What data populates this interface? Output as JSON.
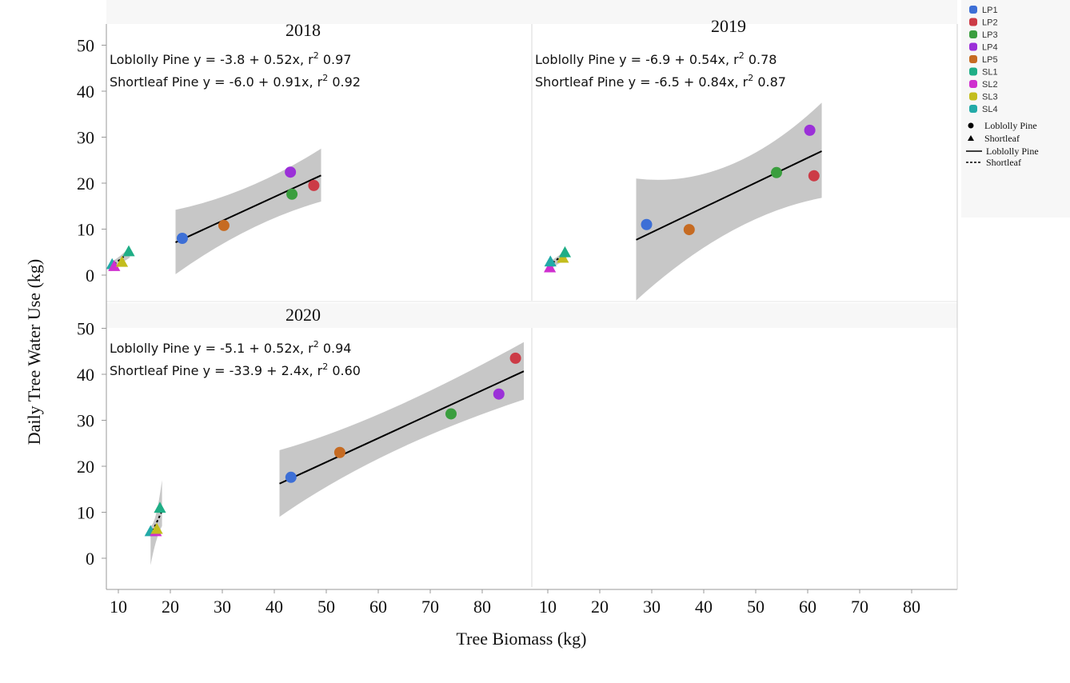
{
  "chart_data": {
    "type": "scatter",
    "xlabel": "Tree Biomass (kg)",
    "ylabel": "Daily Tree Water Use (kg)",
    "xticks": [
      10,
      20,
      30,
      40,
      50,
      60,
      70,
      80
    ],
    "yticks": [
      0,
      10,
      20,
      30,
      40,
      50
    ],
    "xlim": [
      8,
      90
    ],
    "ylim": [
      -7,
      50
    ],
    "legend_position": "right",
    "legend": {
      "series": [
        {
          "name": "LP1",
          "color": "#3d6fd6"
        },
        {
          "name": "LP2",
          "color": "#cc3b46"
        },
        {
          "name": "LP3",
          "color": "#3a9e3e"
        },
        {
          "name": "LP4",
          "color": "#9b30d8"
        },
        {
          "name": "LP5",
          "color": "#c66b22"
        },
        {
          "name": "SL1",
          "color": "#1fae86"
        },
        {
          "name": "SL2",
          "color": "#cf2fcf"
        },
        {
          "name": "SL3",
          "color": "#c3bd1d"
        },
        {
          "name": "SL4",
          "color": "#23aaa8"
        }
      ],
      "shape_entries": [
        {
          "label": "Loblolly Pine",
          "marker": "circle"
        },
        {
          "label": "Shortleaf",
          "marker": "triangle"
        }
      ],
      "line_entries": [
        {
          "label": "Loblolly Pine",
          "style": "solid"
        },
        {
          "label": "Shortleaf",
          "style": "dashed"
        }
      ]
    },
    "panels": [
      {
        "title": "2018",
        "equations": [
          {
            "pre": "Loblolly Pine y = -3.8 + 0.52x, r",
            "sup": "2",
            "post": " 0.97"
          },
          {
            "pre": "Shortleaf Pine y = -6.0 + 0.91x, r",
            "sup": "2",
            "post": " 0.92"
          }
        ],
        "loblolly": [
          {
            "s": "LP1",
            "x": 22.3,
            "y": 8.0
          },
          {
            "s": "LP5",
            "x": 30.3,
            "y": 10.8
          },
          {
            "s": "LP3",
            "x": 43.4,
            "y": 17.6
          },
          {
            "s": "LP4",
            "x": 43.1,
            "y": 22.4
          },
          {
            "s": "LP2",
            "x": 47.6,
            "y": 19.5
          }
        ],
        "shortleaf": [
          {
            "s": "SL4",
            "x": 8.8,
            "y": 2.3
          },
          {
            "s": "SL2",
            "x": 9.2,
            "y": 1.9
          },
          {
            "s": "SL3",
            "x": 10.7,
            "y": 2.8
          },
          {
            "s": "SL1",
            "x": 12.0,
            "y": 5.1
          }
        ],
        "lp_fit": {
          "x0": 21,
          "x1": 49,
          "b": -3.8,
          "m": 0.52,
          "band": [
            [
              21,
              0.2,
              14.2
            ],
            [
              35,
              11.5,
              17.5
            ],
            [
              49,
              16.0,
              27.5
            ]
          ]
        },
        "sl_fit": {
          "x0": 8.5,
          "x1": 12.2,
          "b": -6.0,
          "m": 0.91,
          "band": [
            [
              8.5,
              0.8,
              2.8
            ],
            [
              10.5,
              2.6,
              4.0
            ],
            [
              12.2,
              3.8,
              6.2
            ]
          ]
        }
      },
      {
        "title": "2019",
        "equations": [
          {
            "pre": "Loblolly Pine y = -6.9 + 0.54x, r",
            "sup": "2",
            "post": " 0.78"
          },
          {
            "pre": "Shortleaf Pine y = -6.5 + 0.84x, r",
            "sup": "2",
            "post": " 0.87"
          }
        ],
        "loblolly": [
          {
            "s": "LP1",
            "x": 29.0,
            "y": 11.0
          },
          {
            "s": "LP5",
            "x": 37.2,
            "y": 9.9
          },
          {
            "s": "LP3",
            "x": 54.0,
            "y": 22.3
          },
          {
            "s": "LP4",
            "x": 60.4,
            "y": 31.5
          },
          {
            "s": "LP2",
            "x": 61.2,
            "y": 21.6
          }
        ],
        "shortleaf": [
          {
            "s": "SL2",
            "x": 10.4,
            "y": 1.6
          },
          {
            "s": "SL4",
            "x": 10.5,
            "y": 2.9
          },
          {
            "s": "SL3",
            "x": 12.9,
            "y": 3.7
          },
          {
            "s": "SL1",
            "x": 13.3,
            "y": 4.9
          }
        ],
        "lp_fit": {
          "x0": 27,
          "x1": 62.7,
          "b": -6.9,
          "m": 0.54,
          "band": [
            [
              27,
              -5.5,
              21.0
            ],
            [
              45,
              13.0,
              18.5
            ],
            [
              62.7,
              16.8,
              37.5
            ]
          ]
        },
        "sl_fit": {
          "x0": 10.2,
          "x1": 13.6,
          "b": -6.5,
          "m": 0.84,
          "band": [
            [
              10.2,
              1.0,
              3.0
            ],
            [
              12,
              2.6,
              3.8
            ],
            [
              13.6,
              3.4,
              5.8
            ]
          ]
        }
      },
      {
        "title": "2020",
        "equations": [
          {
            "pre": "Loblolly Pine y = -5.1 + 0.52x, r",
            "sup": "2",
            "post": " 0.94"
          },
          {
            "pre": "Shortleaf Pine y = -33.9 + 2.4x, r",
            "sup": "2",
            "post": " 0.60"
          }
        ],
        "loblolly": [
          {
            "s": "LP1",
            "x": 43.2,
            "y": 17.6
          },
          {
            "s": "LP5",
            "x": 52.6,
            "y": 23.0
          },
          {
            "s": "LP3",
            "x": 74.0,
            "y": 31.4
          },
          {
            "s": "LP4",
            "x": 83.2,
            "y": 35.7
          },
          {
            "s": "LP2",
            "x": 86.4,
            "y": 43.5
          }
        ],
        "shortleaf": [
          {
            "s": "SL4",
            "x": 16.2,
            "y": 5.8
          },
          {
            "s": "SL2",
            "x": 17.2,
            "y": 5.8
          },
          {
            "s": "SL3",
            "x": 17.4,
            "y": 6.3
          },
          {
            "s": "SL1",
            "x": 18.0,
            "y": 10.9
          }
        ],
        "lp_fit": {
          "x0": 41,
          "x1": 88,
          "b": -5.1,
          "m": 0.52,
          "band": [
            [
              41,
              9.0,
              23.5
            ],
            [
              60,
              24.0,
              29.5
            ],
            [
              88,
              34.5,
              47.0
            ]
          ]
        },
        "sl_fit": {
          "x0": 16.2,
          "x1": 18.4,
          "b": -33.9,
          "m": 2.4,
          "band": [
            [
              16.2,
              -1.5,
              7.0
            ],
            [
              17.2,
              4.5,
              7.2
            ],
            [
              18.4,
              7.0,
              17.0
            ]
          ]
        }
      }
    ]
  }
}
